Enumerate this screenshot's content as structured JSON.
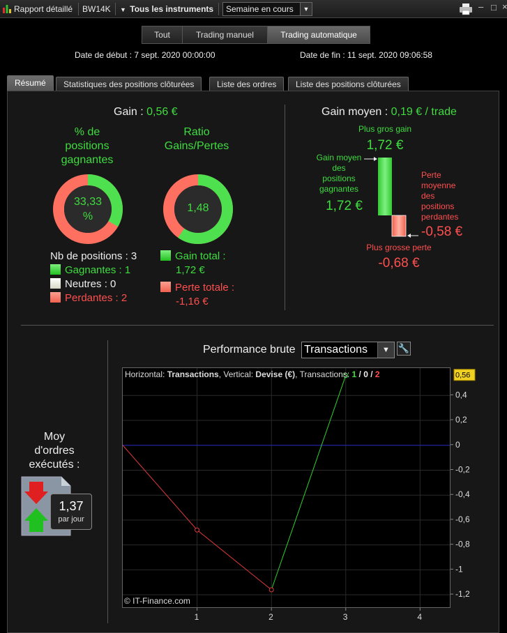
{
  "titlebar": {
    "report_label": "Rapport détaillé",
    "account": "BW14K",
    "instruments": "Tous les instruments",
    "period": "Semaine en cours"
  },
  "header": {
    "segments": [
      "Tout",
      "Trading manuel",
      "Trading automatique"
    ],
    "active_segment": "Trading automatique",
    "start_label": "Date de début : 7 sept. 2020 00:00:00",
    "end_label": "Date de fin : 11 sept. 2020 09:06:58"
  },
  "tabs": [
    "Résumé",
    "Statistiques des positions clôturées",
    "Liste des ordres",
    "Liste des positions clôturées"
  ],
  "summary": {
    "gain_label": "Gain :",
    "gain_value": "0,56 €",
    "winning_pct_title_1": "% de",
    "winning_pct_title_2": "positions",
    "winning_pct_title_3": "gagnantes",
    "winning_pct_value_1": "33,33",
    "winning_pct_value_2": "%",
    "winning_fraction": 0.3333,
    "ratio_title_1": "Ratio",
    "ratio_title_2": "Gains/Pertes",
    "ratio_value": "1,48",
    "ratio_green_fraction": 0.597,
    "nb_positions": "Nb de positions : 3",
    "gagnantes": "Gagnantes : 1",
    "neutres": "Neutres : 0",
    "perdantes": "Perdantes : 2",
    "gain_total_label": "Gain total :",
    "gain_total_value": "1,72 €",
    "perte_totale_label": "Perte totale :",
    "perte_totale_value": "-1,16 €"
  },
  "avg": {
    "title": "Gain moyen :",
    "title_value": "0,19 € / trade",
    "max_gain_label": "Plus gros gain",
    "max_gain_value": "1,72 €",
    "avg_win_label_1": "Gain moyen",
    "avg_win_label_2": "des",
    "avg_win_label_3": "positions",
    "avg_win_label_4": "gagnantes",
    "avg_win_value": "1,72 €",
    "avg_loss_label_1": "Perte",
    "avg_loss_label_2": "moyenne",
    "avg_loss_label_3": "des",
    "avg_loss_label_4": "positions",
    "avg_loss_label_5": "perdantes",
    "avg_loss_value": "-0,58 €",
    "max_loss_label": "Plus grosse perte",
    "max_loss_value": "-0,68 €"
  },
  "orders": {
    "label_1": "Moy",
    "label_2": "d'ordres",
    "label_3": "exécutés :",
    "value": "1,37",
    "unit": "par jour"
  },
  "performance": {
    "title": "Performance brute",
    "mode": "Transactions",
    "info_prefix": "Horizontal: ",
    "info_h": "Transactions",
    "info_mid": ", Vertical: ",
    "info_v": "Devise (€)",
    "info_tx": ", Transactions: ",
    "tx_win": "1",
    "tx_sep1": " / ",
    "tx_neutral": "0",
    "tx_sep2": " / ",
    "tx_loss": "2",
    "copyright": "© IT-Finance.com",
    "current_value": "0,56"
  },
  "colors": {
    "green": "#3fdc3f",
    "red": "#ff4f4f",
    "zero_line": "#2020c0"
  },
  "chart_data": {
    "type": "line",
    "x": [
      0,
      1,
      2,
      3
    ],
    "y": [
      0,
      -0.68,
      -1.16,
      0.56
    ],
    "segment_colors": [
      "red",
      "red",
      "green"
    ],
    "xlim": [
      0,
      4.4
    ],
    "ylim": [
      -1.3,
      0.62
    ],
    "x_ticks": [
      "1",
      "2",
      "3",
      "4"
    ],
    "y_ticks": [
      "0,4",
      "0,2",
      "0",
      "-0,2",
      "-0,4",
      "-0,6",
      "-0,8",
      "-1",
      "-1,2"
    ],
    "y_tick_values": [
      0.4,
      0.2,
      0,
      -0.2,
      -0.4,
      -0.6,
      -0.8,
      -1,
      -1.2
    ],
    "xlabel": "Transactions",
    "ylabel": "Devise (€)"
  }
}
